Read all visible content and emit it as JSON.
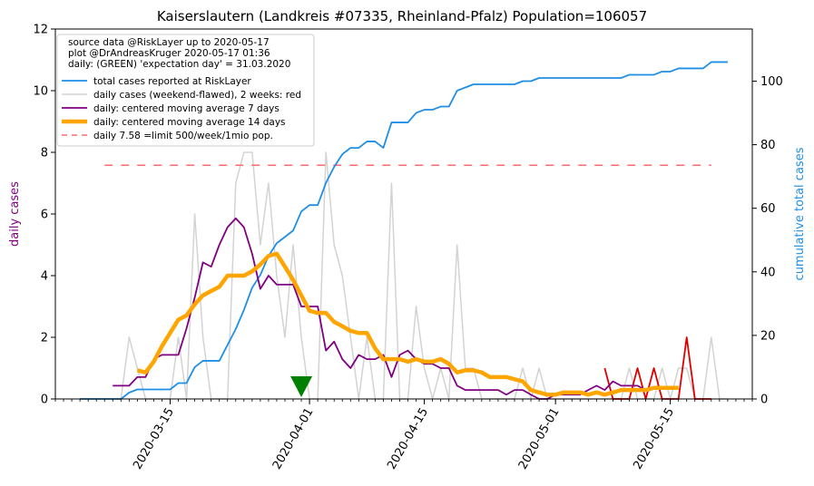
{
  "chart_data": {
    "type": "line",
    "title": "Kaiserslautern (Landkreis #07335, Rheinland-Pfalz) Population=106057",
    "ylabel": "daily cases",
    "y2label": "cumulative total cases",
    "ylim": [
      0,
      12
    ],
    "y2lim": [
      0,
      116.4
    ],
    "xlim": [
      "2020-03-01",
      "2020-05-25"
    ],
    "yticks": [
      "0",
      "2",
      "4",
      "6",
      "8",
      "10",
      "12"
    ],
    "y2ticks": [
      "0",
      "20",
      "40",
      "60",
      "80",
      "100"
    ],
    "xticks": [
      "2020-03-15",
      "2020-04-01",
      "2020-04-15",
      "2020-05-01",
      "2020-05-15"
    ],
    "grid": false,
    "legend_position": "top-left",
    "legend_header": [
      "source data @RiskLayer up to 2020-05-17",
      "plot @DrAndreasKruger 2020-05-17 01:36",
      "daily: (GREEN) 'expectation day' = 31.03.2020"
    ],
    "colors": {
      "total": "#1f8fe6",
      "daily_raw": "#d3d3d3",
      "daily_recent": "#e00000",
      "ma7": "#800080",
      "ma14": "#ffa500",
      "limit": "#ff6b6b",
      "marker": "#008000",
      "ylabel": "#800080",
      "y2label": "#1f8fe6"
    },
    "expectation_day": "2020-03-31",
    "series": [
      {
        "name": "total cases reported at RiskLayer",
        "axis": "right",
        "style": "total",
        "start": "2020-03-04",
        "values": [
          0,
          0,
          0,
          0,
          0,
          0,
          2,
          3,
          3,
          3,
          3,
          3,
          5,
          5,
          10,
          12,
          12,
          12,
          17,
          22,
          28,
          35,
          39,
          45,
          49,
          51,
          53,
          59,
          61,
          61,
          68,
          73,
          77,
          79,
          79,
          81,
          81,
          79,
          87,
          87,
          87,
          90,
          91,
          91,
          92,
          92,
          97,
          98,
          99,
          99,
          99,
          99,
          99,
          99,
          100,
          100,
          101,
          101,
          101,
          101,
          101,
          101,
          101,
          101,
          101,
          101,
          101,
          102,
          102,
          102,
          102,
          103,
          103,
          104,
          104,
          104,
          104,
          106,
          106,
          106
        ]
      },
      {
        "name": "daily cases (weekend-flawed), 2 weeks: red",
        "axis": "left",
        "style": "daily_raw",
        "start": "2020-03-04",
        "values": [
          0,
          0,
          0,
          0,
          0,
          0,
          2,
          1,
          0,
          0,
          0,
          0,
          2,
          0,
          6,
          2,
          0,
          0,
          0,
          7,
          8,
          8,
          5,
          7,
          4,
          2,
          5,
          2,
          0,
          0,
          8,
          5,
          4,
          2,
          0,
          2,
          0,
          0,
          7,
          0,
          0,
          3,
          1,
          0,
          1,
          0,
          5,
          1,
          1,
          0,
          0,
          0,
          0,
          0,
          1,
          0,
          1,
          0,
          0,
          0,
          0,
          0,
          0,
          0,
          0,
          0,
          0,
          1,
          0,
          0,
          0,
          1,
          0,
          1,
          1,
          0,
          0,
          2,
          0,
          0
        ]
      },
      {
        "name": "",
        "axis": "left",
        "style": "daily_recent",
        "start": "2020-05-07",
        "values": [
          1,
          0,
          0,
          0,
          1,
          0,
          1,
          0,
          0,
          0,
          2,
          0,
          0,
          0
        ]
      },
      {
        "name": "daily: centered moving average 7 days",
        "axis": "left",
        "style": "ma7",
        "start": "2020-03-08",
        "values": [
          0.43,
          0.43,
          0.43,
          0.71,
          0.71,
          1.29,
          1.43,
          1.43,
          1.43,
          2.29,
          3.29,
          4.43,
          4.29,
          5.0,
          5.57,
          5.86,
          5.57,
          4.71,
          3.57,
          4.0,
          3.71,
          3.71,
          3.71,
          3.0,
          3.0,
          3.0,
          1.57,
          1.86,
          1.29,
          1.0,
          1.43,
          1.29,
          1.29,
          1.43,
          0.71,
          1.43,
          1.57,
          1.29,
          1.14,
          1.14,
          1.0,
          1.0,
          0.43,
          0.29,
          0.29,
          0.29,
          0.29,
          0.29,
          0.14,
          0.29,
          0.29,
          0.14,
          0.0,
          0.0,
          0.14,
          0.14,
          0.14,
          0.14,
          0.29,
          0.43,
          0.29,
          0.57,
          0.43,
          0.43,
          0.43,
          0.29
        ]
      },
      {
        "name": "daily: centered moving average 14 days",
        "axis": "left",
        "style": "ma14",
        "start": "2020-03-11",
        "values": [
          0.93,
          0.86,
          1.21,
          1.71,
          2.14,
          2.57,
          2.71,
          3.07,
          3.36,
          3.5,
          3.64,
          4.0,
          4.0,
          4.0,
          4.14,
          4.36,
          4.64,
          4.71,
          4.29,
          3.86,
          3.36,
          2.86,
          2.79,
          2.79,
          2.5,
          2.36,
          2.21,
          2.14,
          2.14,
          1.64,
          1.29,
          1.29,
          1.29,
          1.21,
          1.29,
          1.21,
          1.21,
          1.29,
          1.14,
          0.86,
          0.93,
          0.93,
          0.86,
          0.71,
          0.71,
          0.71,
          0.64,
          0.57,
          0.29,
          0.21,
          0.14,
          0.14,
          0.21,
          0.21,
          0.21,
          0.14,
          0.21,
          0.14,
          0.21,
          0.29,
          0.29,
          0.29,
          0.29,
          0.36,
          0.36,
          0.36,
          0.36
        ]
      },
      {
        "name": "daily 7.58 =limit 500/week/1mio pop.",
        "axis": "left",
        "style": "limit",
        "start": "2020-03-07",
        "end": "2020-05-20",
        "value": 7.58
      }
    ]
  }
}
